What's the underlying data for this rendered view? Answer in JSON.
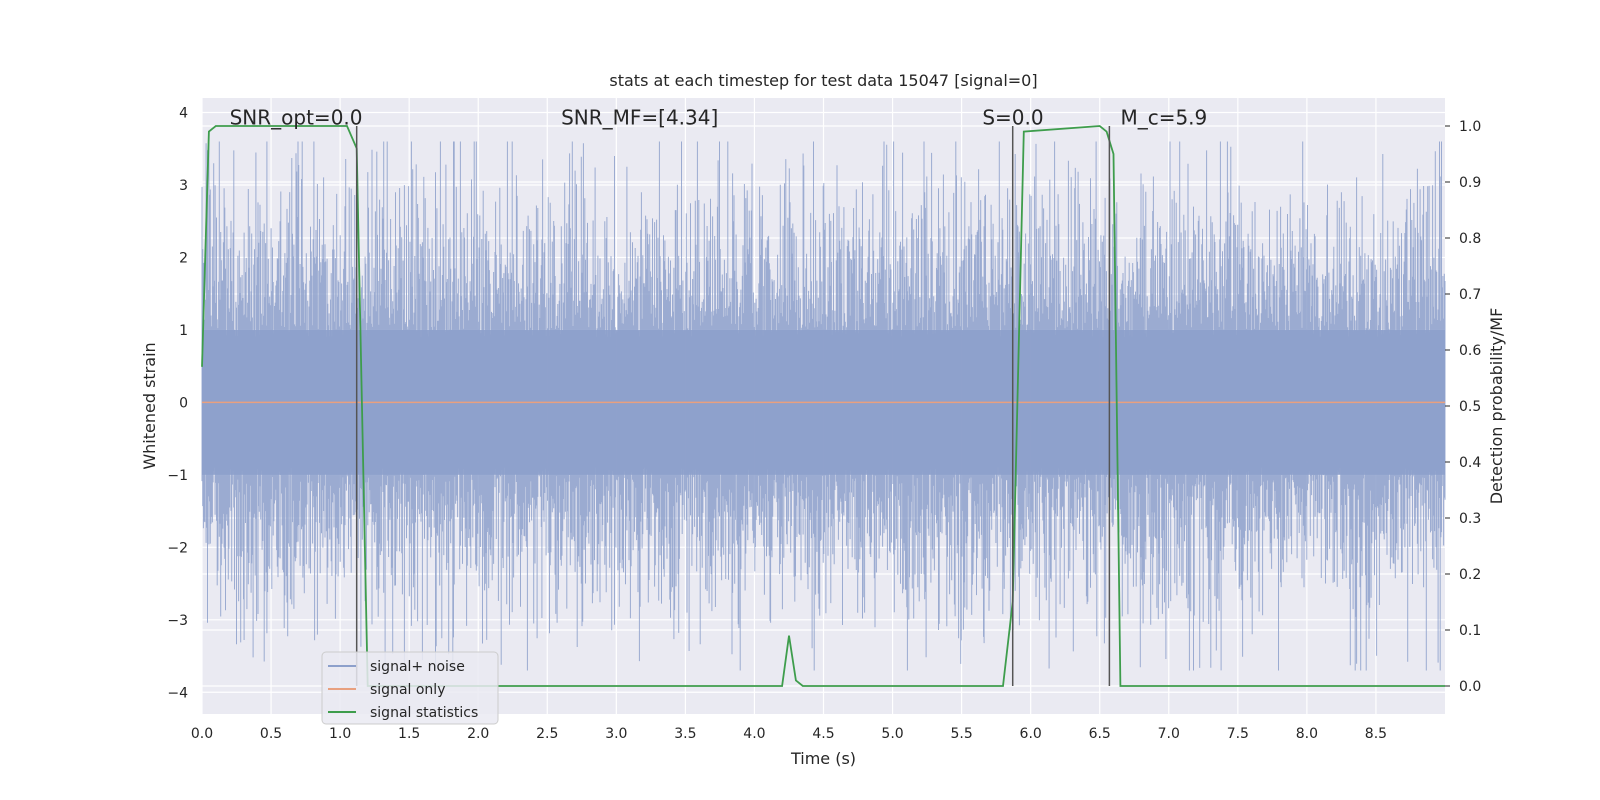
{
  "chart_data": {
    "type": "line",
    "title": "stats at each timestep for test data 15047 [signal=0]",
    "xlabel": "Time (s)",
    "ylabel": "Whitened strain",
    "y2label": "Detection probability/MF",
    "xlim": [
      0,
      9.0
    ],
    "ylim": [
      -4.3,
      4.2
    ],
    "y2lim": [
      -0.05,
      1.05
    ],
    "xticks": [
      0.0,
      0.5,
      1.0,
      1.5,
      2.0,
      2.5,
      3.0,
      3.5,
      4.0,
      4.5,
      5.0,
      5.5,
      6.0,
      6.5,
      7.0,
      7.5,
      8.0,
      8.5
    ],
    "xtick_labels": [
      "0.0",
      "0.5",
      "1.0",
      "1.5",
      "2.0",
      "2.5",
      "3.0",
      "3.5",
      "4.0",
      "4.5",
      "5.0",
      "5.5",
      "6.0",
      "6.5",
      "7.0",
      "7.5",
      "8.0",
      "8.5"
    ],
    "yticks": [
      -4,
      -3,
      -2,
      -1,
      0,
      1,
      2,
      3,
      4
    ],
    "ytick_labels": [
      "−4",
      "−3",
      "−2",
      "−1",
      "0",
      "1",
      "2",
      "3",
      "4"
    ],
    "y2ticks": [
      0.0,
      0.1,
      0.2,
      0.3,
      0.4,
      0.5,
      0.6,
      0.7,
      0.8,
      0.9,
      1.0
    ],
    "y2tick_labels": [
      "0.0",
      "0.1",
      "0.2",
      "0.3",
      "0.4",
      "0.5",
      "0.6",
      "0.7",
      "0.8",
      "0.9",
      "1.0"
    ],
    "grid": true,
    "legend_position": "lower-left",
    "series": [
      {
        "name": "signal+ noise",
        "color": "#8da0cb",
        "axis": "left",
        "style": "noise",
        "x_range": [
          0,
          9.0
        ],
        "amplitude_rms": 1.1,
        "peak_range": [
          -3.7,
          3.6
        ]
      },
      {
        "name": "signal only",
        "color": "#e8a07f",
        "axis": "left",
        "x": [
          0,
          9.0
        ],
        "y": [
          0.0,
          0.0
        ]
      },
      {
        "name": "signal statistics",
        "color": "#3e9d4c",
        "axis": "right",
        "x": [
          0.0,
          0.05,
          0.1,
          1.0,
          1.05,
          1.12,
          1.2,
          1.3,
          4.15,
          4.2,
          4.25,
          4.3,
          4.35,
          5.5,
          5.8,
          5.87,
          5.95,
          6.5,
          6.55,
          6.6,
          6.65,
          6.75,
          6.95,
          7.0,
          9.0
        ],
        "y": [
          0.57,
          0.99,
          1.0,
          1.0,
          1.0,
          0.96,
          0.0,
          0.0,
          0.0,
          0.0,
          0.09,
          0.01,
          0.0,
          0.0,
          0.0,
          0.15,
          0.99,
          1.0,
          0.99,
          0.95,
          0.0,
          0.0,
          0.0,
          0.0,
          0.0
        ]
      }
    ],
    "vlines": [
      1.12,
      5.87,
      6.57
    ],
    "annotations": [
      {
        "text": "SNR_opt=0.0",
        "x": 0.2,
        "y": 3.9
      },
      {
        "text": "SNR_MF=[4.34]",
        "x": 2.6,
        "y": 3.9
      },
      {
        "text": "S=0.0",
        "x": 5.65,
        "y": 3.9
      },
      {
        "text": "M_c=5.9",
        "x": 6.65,
        "y": 3.9
      }
    ]
  }
}
